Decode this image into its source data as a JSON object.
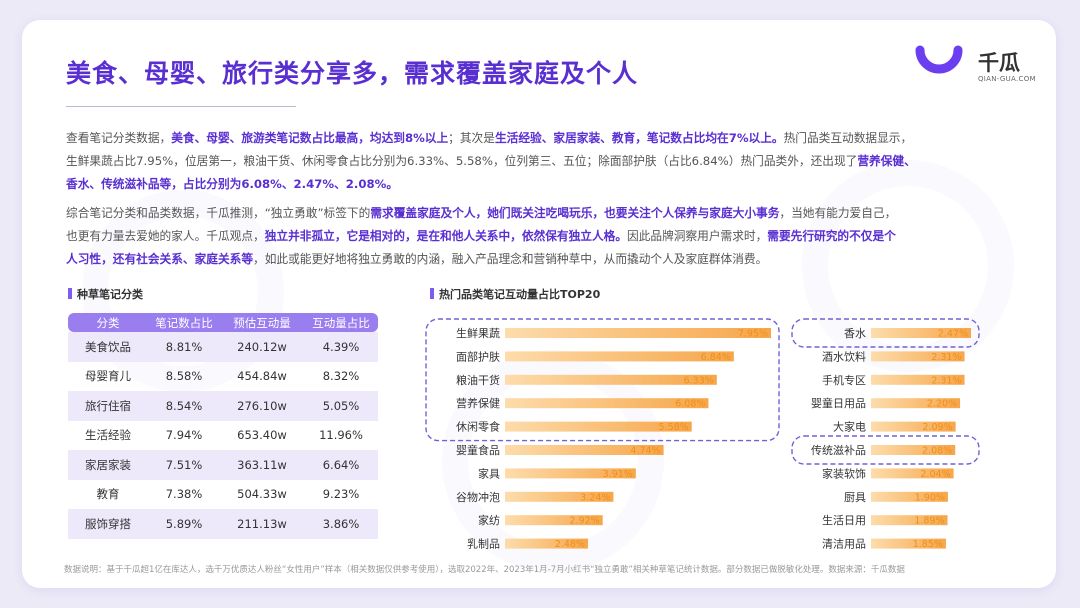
{
  "title": "美食、母婴、旅行类分享多，需求覆盖家庭及个人",
  "logo": {
    "name": "千瓜",
    "url": "QIAN-GUA.COM"
  },
  "paragraph1": [
    {
      "t": "查看笔记分类数据，",
      "b": false
    },
    {
      "t": "美食、母婴、旅游类笔记数占比最高，均达到8%以上",
      "b": true
    },
    {
      "t": "；其次是",
      "b": false
    },
    {
      "t": "生活经验、家居家装、教育，笔记数占比均在7%以上。",
      "b": true
    },
    {
      "t": "热门品类互动数据显示，",
      "b": false
    },
    {
      "br": true
    },
    {
      "t": "生鲜果蔬占比7.95%，位居第一，粮油干货、休闲零食占比分别为6.33%、5.58%，位列第三、五位；除面部护肤（占比6.84%）热门品类外，还出现了",
      "b": false
    },
    {
      "t": "营养保健、",
      "b": true
    },
    {
      "br": true
    },
    {
      "t": "香水、传统滋补品等，占比分别为6.08%、2.47%、2.08%。",
      "b": true
    }
  ],
  "paragraph2": [
    {
      "t": "综合笔记分类和品类数据，千瓜推测，“独立勇敢”标签下的",
      "b": false
    },
    {
      "t": "需求覆盖家庭及个人，她们既关注吃喝玩乐，也要关注个人保养与家庭大小事务",
      "b": true
    },
    {
      "t": "，当她有能力爱自己，",
      "b": false
    },
    {
      "br": true
    },
    {
      "t": "也更有力量去爱她的家人。千瓜观点，",
      "b": false
    },
    {
      "t": "独立并非孤立，它是相对的，是在和他人关系中，依然保有独立人格。",
      "b": true
    },
    {
      "t": "因此品牌洞察用户需求时，",
      "b": false
    },
    {
      "t": "需要先行研究的不仅是个",
      "b": true
    },
    {
      "br": true
    },
    {
      "t": "人习性，还有社会关系、家庭关系等",
      "b": true
    },
    {
      "t": "，如此或能更好地将独立勇敢的内涵，融入产品理念和营销种草中，从而撬动个人及家庭群体消费。",
      "b": false
    }
  ],
  "table_section_title": "种草笔记分类",
  "table": {
    "headers": [
      "分类",
      "笔记数占比",
      "预估互动量",
      "互动量占比"
    ],
    "rows": [
      [
        "美食饮品",
        "8.81%",
        "240.12w",
        "4.39%"
      ],
      [
        "母婴育儿",
        "8.58%",
        "454.84w",
        "8.32%"
      ],
      [
        "旅行住宿",
        "8.54%",
        "276.10w",
        "5.05%"
      ],
      [
        "生活经验",
        "7.94%",
        "653.40w",
        "11.96%"
      ],
      [
        "家居家装",
        "7.51%",
        "363.11w",
        "6.64%"
      ],
      [
        "教育",
        "7.38%",
        "504.33w",
        "9.23%"
      ],
      [
        "服饰穿搭",
        "5.89%",
        "211.13w",
        "3.86%"
      ]
    ]
  },
  "chart_section_title": "热门品类笔记互动量占比TOP20",
  "chart_data": [
    {
      "type": "bar",
      "orientation": "horizontal",
      "categories": [
        "生鲜果蔬",
        "面部护肤",
        "粮油干货",
        "营养保健",
        "休闲零食",
        "婴童食品",
        "家具",
        "谷物冲泡",
        "家纺",
        "乳制品"
      ],
      "values": [
        7.95,
        6.84,
        6.33,
        6.08,
        5.58,
        4.74,
        3.91,
        3.24,
        2.92,
        2.48
      ],
      "value_labels": [
        "7.95%",
        "6.84%",
        "6.33%",
        "6.08%",
        "5.58%",
        "4.74%",
        "3.91%",
        "3.24%",
        "2.92%",
        "2.48%"
      ],
      "highlighted": [
        "生鲜果蔬",
        "面部护肤",
        "粮油干货",
        "营养保健",
        "休闲零食"
      ],
      "xlim": [
        0,
        7.95
      ]
    },
    {
      "type": "bar",
      "orientation": "horizontal",
      "categories": [
        "香水",
        "酒水饮料",
        "手机专区",
        "婴童日用品",
        "大家电",
        "传统滋补品",
        "家装软饰",
        "厨具",
        "生活日用",
        "清洁用品"
      ],
      "values": [
        2.47,
        2.31,
        2.31,
        2.2,
        2.09,
        2.08,
        2.04,
        1.9,
        1.89,
        1.85
      ],
      "value_labels": [
        "2.47%",
        "2.31%",
        "2.31%",
        "2.20%",
        "2.09%",
        "2.08%",
        "2.04%",
        "1.90%",
        "1.89%",
        "1.85%"
      ],
      "highlighted": [
        "香水",
        "传统滋补品"
      ],
      "xlim": [
        0,
        2.47
      ]
    }
  ],
  "colors": {
    "accent": "#5a2fd2",
    "bar_start": "#fddcab",
    "bar_end": "#f6a64a",
    "value_text": "#f08f1a",
    "highlight_dash": "#6c63d6"
  },
  "footnote": "数据说明：基于千瓜超1亿在库达人，选千万优质达人粉丝“女性用户”样本（相关数据仅供参考使用），选取2022年、2023年1月-7月小红书“独立勇敢”相关种草笔记统计数据。部分数据已做脱敏化处理。数据来源：千瓜数据"
}
